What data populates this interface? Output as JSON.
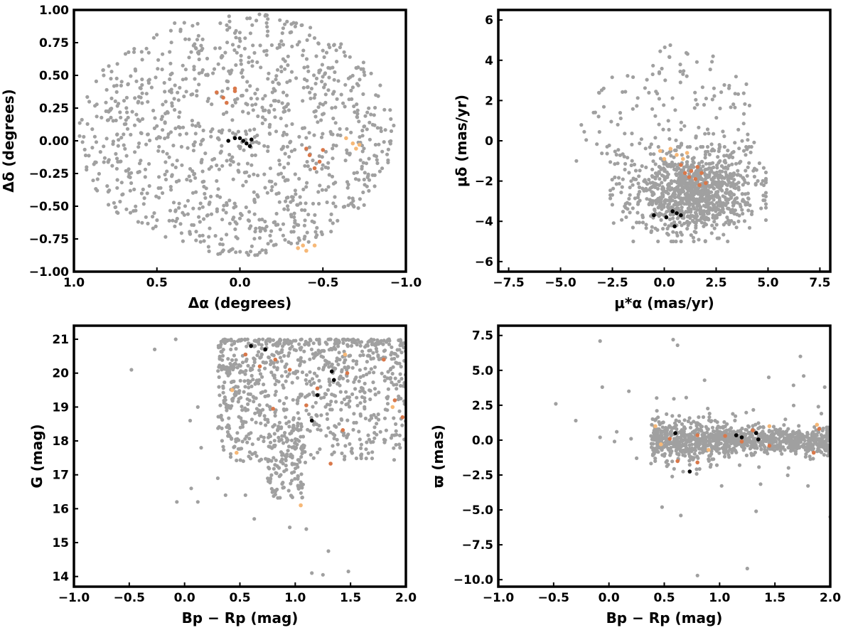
{
  "colors": {
    "field": "#a0a0a0",
    "member_black": "#000000",
    "member_dark_orange": "#d9784a",
    "member_light_orange": "#f6b877",
    "frame": "#000000"
  },
  "chart_data": [
    {
      "id": "sky",
      "type": "scatter",
      "xlabel": "Δα (degrees)",
      "ylabel": "Δδ (degrees)",
      "xlim": [
        1.0,
        -1.0
      ],
      "ylim": [
        -1.0,
        1.0
      ],
      "x_inverted": true,
      "xticks": [
        1.0,
        0.5,
        0.0,
        -0.5,
        -1.0
      ],
      "xtick_labels": [
        "1.0",
        "0.5",
        "0.0",
        "−0.5",
        "−1.0"
      ],
      "yticks": [
        1.0,
        0.75,
        0.5,
        0.25,
        0.0,
        -0.25,
        -0.5,
        -0.75,
        -1.0
      ],
      "ytick_labels": [
        "1.00",
        "0.75",
        "0.50",
        "0.25",
        "0.00",
        "−0.25",
        "−0.50",
        "−0.75",
        "−1.00"
      ],
      "grid": false,
      "field_description": "~1100 grey field stars uniformly filling a circle of radius ~0.95° centred near (0.0, 0.05), flattened at the bottom near Δδ=−0.9",
      "series": [
        {
          "color": "member_black",
          "points": [
            [
              0.07,
              0.0
            ],
            [
              0.0,
              0.02
            ],
            [
              -0.02,
              0.0
            ],
            [
              -0.04,
              -0.02
            ],
            [
              -0.07,
              0.01
            ],
            [
              -0.06,
              -0.04
            ],
            [
              0.03,
              0.02
            ]
          ]
        },
        {
          "color": "member_dark_orange",
          "points": [
            [
              0.14,
              0.37
            ],
            [
              0.1,
              0.33
            ],
            [
              0.08,
              0.29
            ],
            [
              0.03,
              0.38
            ],
            [
              0.03,
              0.4
            ],
            [
              -0.4,
              -0.06
            ],
            [
              -0.42,
              -0.11
            ],
            [
              -0.45,
              -0.21
            ],
            [
              -0.5,
              -0.07
            ],
            [
              -0.48,
              -0.16
            ]
          ]
        },
        {
          "color": "member_light_orange",
          "points": [
            [
              -0.35,
              -0.82
            ],
            [
              -0.38,
              -0.8
            ],
            [
              -0.4,
              -0.84
            ],
            [
              -0.45,
              -0.8
            ],
            [
              -0.64,
              0.02
            ],
            [
              -0.68,
              -0.02
            ],
            [
              -0.7,
              -0.06
            ],
            [
              -0.72,
              -0.03
            ]
          ]
        }
      ]
    },
    {
      "id": "pm",
      "type": "scatter",
      "xlabel": "μ*α (mas/yr)",
      "ylabel": "μδ (mas/yr)",
      "xlim": [
        -8.0,
        8.0
      ],
      "ylim": [
        -6.5,
        6.5
      ],
      "xticks": [
        -7.5,
        -5.0,
        -2.5,
        0.0,
        2.5,
        5.0,
        7.5
      ],
      "xtick_labels": [
        "−7.5",
        "−5.0",
        "−2.5",
        "0.0",
        "2.5",
        "5.0",
        "7.5"
      ],
      "yticks": [
        6,
        4,
        2,
        0,
        -2,
        -4,
        -6
      ],
      "ytick_labels": [
        "6",
        "4",
        "2",
        "0",
        "−2",
        "−4",
        "−6"
      ],
      "grid": false,
      "field_description": "~1100 grey field stars in a dense cloud centred near (1.3, -2.5) with sparse outliers up to μδ ≈ 4.8",
      "series": [
        {
          "color": "member_black",
          "points": [
            [
              -0.5,
              -3.7
            ],
            [
              0.1,
              -3.8
            ],
            [
              0.4,
              -3.5
            ],
            [
              0.6,
              -3.6
            ],
            [
              0.8,
              -3.7
            ],
            [
              0.5,
              -4.25
            ]
          ]
        },
        {
          "color": "member_dark_orange",
          "points": [
            [
              0.8,
              -1.2
            ],
            [
              1.0,
              -1.6
            ],
            [
              1.3,
              -1.5
            ],
            [
              1.5,
              -1.9
            ],
            [
              1.7,
              -2.2
            ],
            [
              1.8,
              -1.6
            ],
            [
              2.0,
              -2.1
            ],
            [
              1.6,
              -1.3
            ],
            [
              1.2,
              -1.8
            ]
          ]
        },
        {
          "color": "member_light_orange",
          "points": [
            [
              -0.2,
              -0.5
            ],
            [
              0.3,
              -0.4
            ],
            [
              0.6,
              -0.7
            ],
            [
              0.9,
              -0.9
            ],
            [
              1.1,
              -0.6
            ],
            [
              0.0,
              -0.9
            ]
          ]
        }
      ]
    },
    {
      "id": "cmd",
      "type": "scatter",
      "xlabel": "Bp − Rp (mag)",
      "ylabel": "G (mag)",
      "xlim": [
        -1.0,
        2.0
      ],
      "ylim": [
        13.7,
        21.4
      ],
      "xticks": [
        -1.0,
        -0.5,
        0.0,
        0.5,
        1.0,
        1.5,
        2.0
      ],
      "xtick_labels": [
        "−1.0",
        "−0.5",
        "0.0",
        "0.5",
        "1.0",
        "1.5",
        "2.0"
      ],
      "yticks": [
        14,
        15,
        16,
        17,
        18,
        19,
        20,
        21
      ],
      "ytick_labels": [
        "14",
        "15",
        "16",
        "17",
        "18",
        "19",
        "20",
        "21"
      ],
      "grid": false,
      "field_description": "~1100 grey field stars mostly at G 18-21 with colour 0.3-2.0; a tail to G ~16 near colour 0.8-1.0",
      "series": [
        {
          "color": "member_black",
          "points": [
            [
              0.6,
              20.8
            ],
            [
              0.73,
              20.7
            ],
            [
              1.33,
              20.05
            ],
            [
              1.35,
              19.8
            ],
            [
              1.2,
              19.35
            ],
            [
              1.15,
              18.6
            ]
          ]
        },
        {
          "color": "member_dark_orange",
          "points": [
            [
              0.55,
              20.55
            ],
            [
              0.82,
              20.4
            ],
            [
              0.68,
              20.2
            ],
            [
              0.95,
              20.1
            ],
            [
              1.47,
              20.0
            ],
            [
              1.8,
              20.4
            ],
            [
              0.8,
              18.95
            ],
            [
              1.1,
              19.05
            ],
            [
              1.2,
              19.55
            ],
            [
              1.32,
              17.33
            ],
            [
              1.43,
              18.32
            ],
            [
              1.9,
              19.2
            ],
            [
              1.97,
              18.7
            ]
          ]
        },
        {
          "color": "member_light_orange",
          "points": [
            [
              0.43,
              19.5
            ],
            [
              0.47,
              17.65
            ],
            [
              1.05,
              16.1
            ],
            [
              1.45,
              20.55
            ],
            [
              1.88,
              19.0
            ]
          ]
        }
      ]
    },
    {
      "id": "parallax",
      "type": "scatter",
      "xlabel": "Bp − Rp (mag)",
      "ylabel": "ϖ (mas)",
      "xlim": [
        -1.0,
        2.0
      ],
      "ylim": [
        -10.5,
        8.2
      ],
      "xticks": [
        -1.0,
        -0.5,
        0.0,
        0.5,
        1.0,
        1.5,
        2.0
      ],
      "xtick_labels": [
        "−1.0",
        "−0.5",
        "0.0",
        "0.5",
        "1.0",
        "1.5",
        "2.0"
      ],
      "yticks": [
        7.5,
        5.0,
        2.5,
        0.0,
        -2.5,
        -5.0,
        -7.5,
        -10.0
      ],
      "ytick_labels": [
        "7.5",
        "5.0",
        "2.5",
        "0.0",
        "−2.5",
        "−5.0",
        "−7.5",
        "−10.0"
      ],
      "grid": false,
      "field_description": "~1100 grey field stars forming a band around ϖ=0 (spread ~±1.5 mas) for colour 0.4-2.0, with outliers from -9.7 to 7.2",
      "series": [
        {
          "color": "member_black",
          "points": [
            [
              0.6,
              0.5
            ],
            [
              1.15,
              0.35
            ],
            [
              1.2,
              0.2
            ],
            [
              1.33,
              0.5
            ],
            [
              1.35,
              0.05
            ],
            [
              0.73,
              -2.25
            ]
          ]
        },
        {
          "color": "member_dark_orange",
          "points": [
            [
              0.62,
              -1.5
            ],
            [
              0.8,
              0.35
            ],
            [
              0.8,
              -1.6
            ],
            [
              1.05,
              0.3
            ],
            [
              1.2,
              -0.1
            ],
            [
              1.3,
              0.7
            ],
            [
              1.45,
              -0.4
            ],
            [
              1.85,
              -0.9
            ],
            [
              1.9,
              0.8
            ],
            [
              0.55,
              0.1
            ]
          ]
        },
        {
          "color": "member_light_orange",
          "points": [
            [
              0.42,
              1.0
            ],
            [
              0.47,
              -0.3
            ],
            [
              0.9,
              -0.7
            ],
            [
              1.45,
              1.0
            ],
            [
              1.88,
              1.1
            ]
          ]
        }
      ]
    }
  ]
}
